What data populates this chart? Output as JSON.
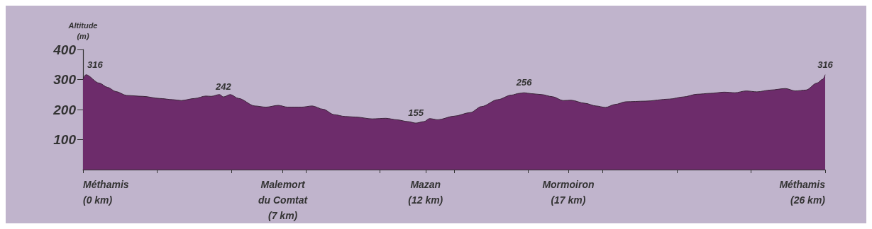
{
  "chart_data": {
    "type": "area",
    "ylabel": "Altitude\n(m)",
    "xlim": [
      0,
      26
    ],
    "ylim": [
      0,
      400
    ],
    "yticks": [
      100,
      200,
      300,
      400
    ],
    "xticks": [
      {
        "value": 0,
        "label": "Méthamis\n(0 km)"
      },
      {
        "value": 2.6,
        "label": null
      },
      {
        "value": 5.2,
        "label": null
      },
      {
        "value": 7,
        "label": "Malemort\ndu Comtat\n(7 km)"
      },
      {
        "value": 7.8,
        "label": null
      },
      {
        "value": 10.4,
        "label": null
      },
      {
        "value": 12,
        "label": "Mazan\n(12 km)"
      },
      {
        "value": 13,
        "label": null
      },
      {
        "value": 15.6,
        "label": null
      },
      {
        "value": 17,
        "label": "Mormoiron\n(17 km)"
      },
      {
        "value": 18.2,
        "label": null
      },
      {
        "value": 20.8,
        "label": null
      },
      {
        "value": 23.4,
        "label": null
      },
      {
        "value": 26,
        "label": "Méthamis\n(26 km)"
      }
    ],
    "grid": false,
    "series": [
      {
        "color": "#6d2c6b",
        "x": [
          0,
          0.1,
          0.57,
          0.86,
          1.15,
          1.53,
          2.1,
          2.68,
          3.15,
          3.44,
          3.92,
          4.3,
          4.49,
          4.78,
          4.92,
          5.16,
          5.45,
          6.02,
          6.41,
          6.84,
          7.17,
          7.65,
          8.03,
          8.41,
          8.8,
          9.18,
          9.56,
          10.13,
          10.61,
          10.99,
          11.38,
          11.66,
          11.95,
          12.14,
          12.43,
          13.0,
          13.57,
          13.96,
          14.53,
          15.0,
          15.29,
          15.45,
          15.7,
          16.06,
          16.44,
          16.82,
          17.1,
          17.58,
          17.97,
          18.3,
          18.64,
          19.02,
          19.69,
          20.55,
          21.03,
          21.51,
          21.98,
          22.46,
          22.84,
          23.23,
          23.61,
          24.09,
          24.61,
          24.95,
          25.33,
          25.71,
          25.92,
          26
        ],
        "values": [
          300,
          316,
          288,
          274,
          260,
          247,
          244,
          237,
          233,
          230,
          237,
          245,
          244,
          250,
          242,
          250,
          237,
          212,
          208,
          214,
          208,
          208,
          212,
          201,
          183,
          177,
          175,
          169,
          171,
          166,
          160,
          155,
          160,
          170,
          166,
          178,
          190,
          210,
          233,
          248,
          254,
          256,
          253,
          250,
          243,
          230,
          231,
          221,
          212,
          207,
          217,
          226,
          228,
          235,
          242,
          251,
          254,
          258,
          256,
          262,
          259,
          265,
          270,
          262,
          265,
          288,
          301,
          316
        ],
        "value_labels": [
          null,
          "316",
          null,
          null,
          null,
          null,
          null,
          null,
          null,
          null,
          null,
          null,
          null,
          null,
          "242",
          null,
          null,
          null,
          null,
          null,
          null,
          null,
          null,
          null,
          null,
          null,
          null,
          null,
          null,
          null,
          null,
          "155",
          null,
          null,
          null,
          null,
          null,
          null,
          null,
          null,
          null,
          "256",
          null,
          null,
          null,
          null,
          null,
          null,
          null,
          null,
          null,
          null,
          null,
          null,
          null,
          null,
          null,
          null,
          null,
          null,
          null,
          null,
          null,
          null,
          null,
          null,
          null,
          "316"
        ]
      }
    ]
  }
}
